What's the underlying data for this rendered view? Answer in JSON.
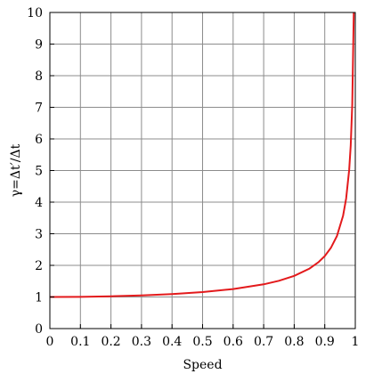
{
  "chart_data": {
    "type": "line",
    "title": "",
    "xlabel": "Speed",
    "ylabel": "γ=Δt′/Δt",
    "xlim": [
      0,
      1
    ],
    "ylim": [
      0,
      10
    ],
    "x_ticks": [
      "0",
      "0.1",
      "0.2",
      "0.3",
      "0.4",
      "0.5",
      "0.6",
      "0.7",
      "0.8",
      "0.9",
      "1"
    ],
    "y_ticks": [
      "0",
      "1",
      "2",
      "3",
      "4",
      "5",
      "6",
      "7",
      "8",
      "9",
      "10"
    ],
    "grid": true,
    "legend": "none",
    "series": [
      {
        "color": "#e31a1c",
        "x": [
          0,
          0.1,
          0.2,
          0.3,
          0.4,
          0.5,
          0.6,
          0.7,
          0.75,
          0.8,
          0.85,
          0.88,
          0.9,
          0.92,
          0.94,
          0.96,
          0.97,
          0.98,
          0.985,
          0.99,
          0.995
        ],
        "y": [
          1.0,
          1.005,
          1.021,
          1.048,
          1.091,
          1.155,
          1.25,
          1.4,
          1.512,
          1.667,
          1.898,
          2.105,
          2.294,
          2.552,
          2.931,
          3.571,
          4.113,
          5.025,
          5.795,
          7.089,
          10.0
        ]
      }
    ]
  }
}
